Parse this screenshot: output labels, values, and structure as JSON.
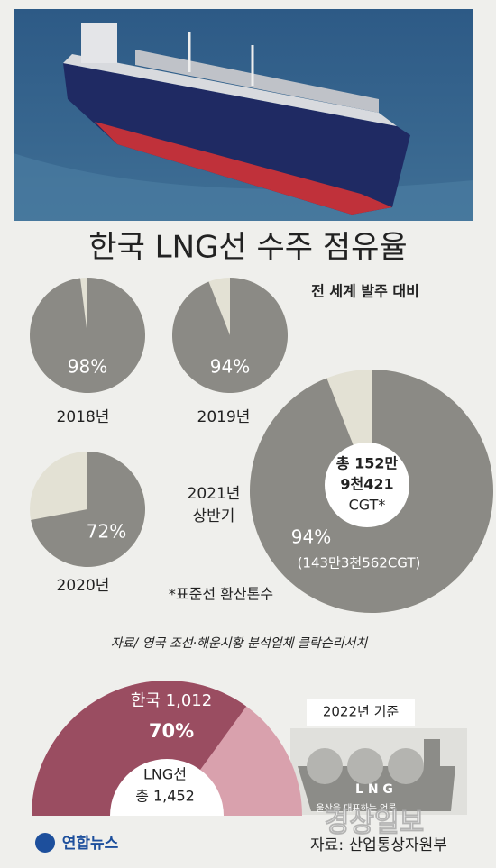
{
  "title": "한국 LNG선 수주 점유율",
  "subtitle": "전 세계 발주 대비",
  "chart_data": [
    {
      "type": "pie",
      "label": "2018년",
      "values": [
        98
      ],
      "value_labels": [
        "98%"
      ],
      "color": "#8b8a85",
      "rest_color": "#e3e1d4"
    },
    {
      "type": "pie",
      "label": "2019년",
      "values": [
        94
      ],
      "value_labels": [
        "94%"
      ],
      "color": "#8b8a85",
      "rest_color": "#e3e1d4"
    },
    {
      "type": "pie",
      "label": "2020년",
      "values": [
        72
      ],
      "value_labels": [
        "72%"
      ],
      "color": "#8b8a85",
      "rest_color": "#e3e1d4"
    },
    {
      "type": "donut",
      "label": [
        "2021년",
        "상반기"
      ],
      "center_text": [
        "총 152만",
        "9천421",
        "CGT*"
      ],
      "values": [
        94
      ],
      "value_labels": [
        "94%"
      ],
      "value_note": "(143만3천562CGT)",
      "color": "#8b8a85",
      "rest_color": "#e3e1d4"
    },
    {
      "type": "half-donut",
      "note": "2022년 기준",
      "korea_label": "한국 1,012",
      "values": [
        70
      ],
      "value_labels": [
        "70%"
      ],
      "center_label": "LNG선",
      "total_label": "총 1,452",
      "color": "#9a4d61",
      "rest_color": "#d9a1ad"
    }
  ],
  "footnote": "*표준선 환산톤수",
  "source_top": "자료/ 영국 조선·해운시황 분석업체 클락슨리서치",
  "ship_label": "L N G",
  "logo": "연합뉴스",
  "source_bottom": "자료: 산업통상자원부",
  "watermark": {
    "tagline": "울산을 대표하는 언론",
    "name": "경상일보"
  }
}
